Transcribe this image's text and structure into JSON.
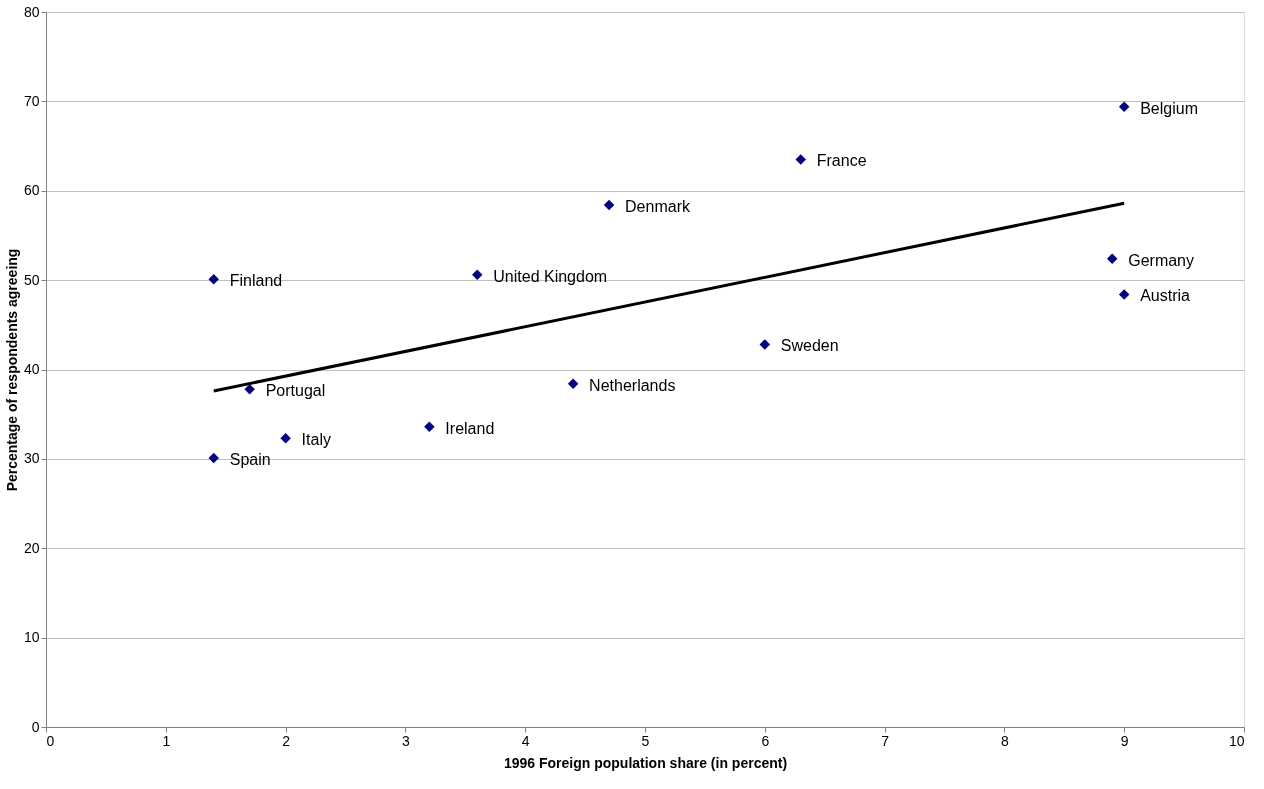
{
  "chart_data": {
    "type": "scatter",
    "xlabel": "1996 Foreign population share (in percent)",
    "ylabel": "Percentage of respondents agreeing",
    "xlim": [
      0,
      10
    ],
    "xticks": [
      0,
      1,
      2,
      3,
      4,
      5,
      6,
      7,
      8,
      9,
      10
    ],
    "ylim": [
      0,
      80
    ],
    "yticks": [
      0,
      10,
      20,
      30,
      40,
      50,
      60,
      70,
      80
    ],
    "grid": "y",
    "series": [
      {
        "color": "#000080",
        "marker": "diamond",
        "x": [
          9.0,
          6.3,
          4.7,
          3.6,
          1.4,
          8.9,
          9.0,
          6.0,
          4.4,
          1.7,
          3.2,
          2.0,
          1.4
        ],
        "values": [
          69.4,
          63.5,
          58.4,
          50.6,
          50.1,
          52.4,
          48.4,
          42.8,
          38.4,
          37.8,
          33.6,
          32.3,
          30.1
        ]
      },
      {
        "type": "line",
        "color": "#000000",
        "marker": "none",
        "x": [
          1.4,
          9.0
        ],
        "values": [
          37.6,
          58.6
        ]
      }
    ],
    "annotations": [
      {
        "text": "Belgium",
        "x": 9.0,
        "y": 69.4
      },
      {
        "text": "France",
        "x": 6.3,
        "y": 63.5
      },
      {
        "text": "Denmark",
        "x": 4.7,
        "y": 58.4
      },
      {
        "text": "United Kingdom",
        "x": 3.6,
        "y": 50.6
      },
      {
        "text": "Finland",
        "x": 1.4,
        "y": 50.1
      },
      {
        "text": "Germany",
        "x": 8.9,
        "y": 52.4
      },
      {
        "text": "Austria",
        "x": 9.0,
        "y": 48.4
      },
      {
        "text": "Sweden",
        "x": 6.0,
        "y": 42.8
      },
      {
        "text": "Netherlands",
        "x": 4.4,
        "y": 38.4
      },
      {
        "text": "Portugal",
        "x": 1.7,
        "y": 37.8
      },
      {
        "text": "Ireland",
        "x": 3.2,
        "y": 33.6
      },
      {
        "text": "Italy",
        "x": 2.0,
        "y": 32.3
      },
      {
        "text": "Spain",
        "x": 1.4,
        "y": 30.1
      }
    ]
  }
}
